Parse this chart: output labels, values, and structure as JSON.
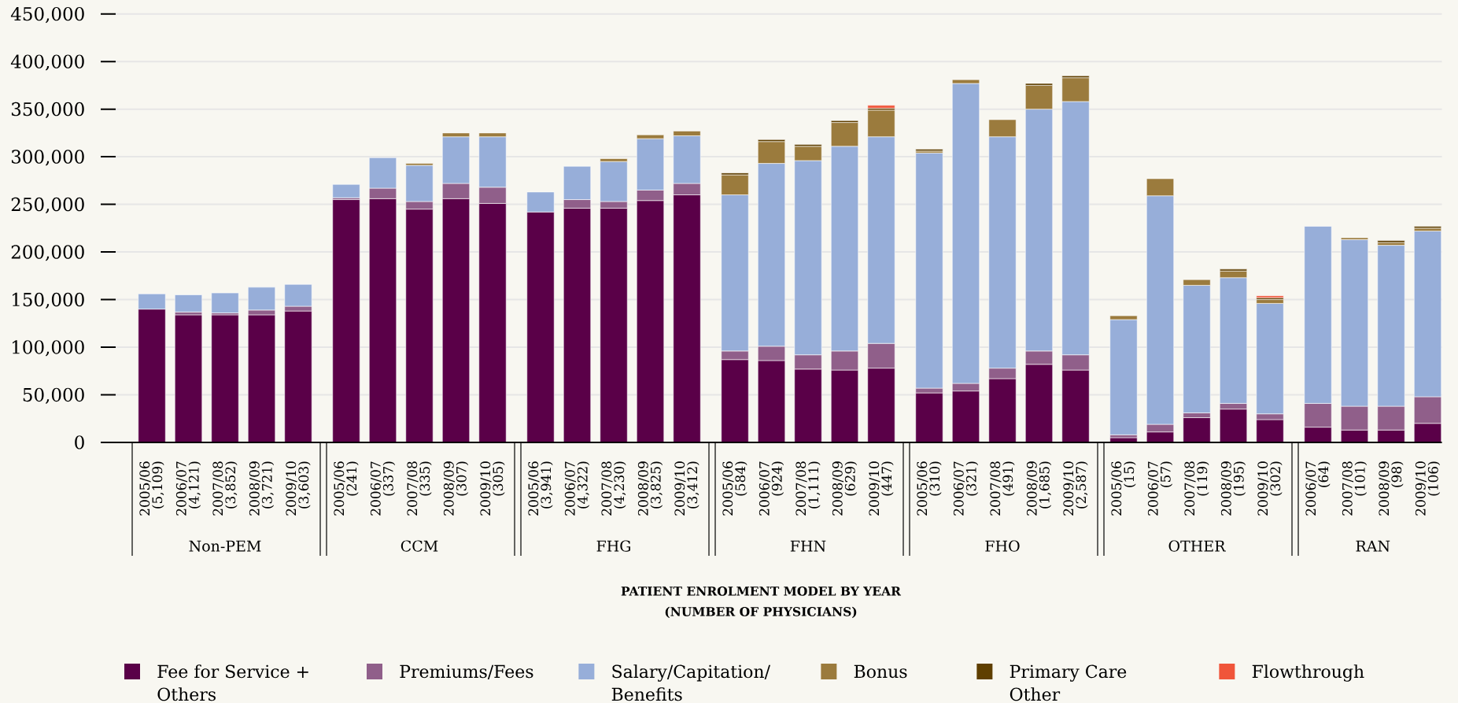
{
  "chart_data": [
    {
      "type": "bar",
      "stacked": true,
      "xlabel": "Non-PEM",
      "categories": [
        "2005/06 (5,109)",
        "2006/07 (4,121)",
        "2007/08 (3,852)",
        "2008/09 (3,721)",
        "2009/10 (3,603)"
      ],
      "series": [
        {
          "name": "Fee for Service + Others",
          "color": "#5a0048",
          "values": [
            140000,
            134000,
            134000,
            134000,
            138000
          ]
        },
        {
          "name": "Premiums/Fees",
          "color": "#905f8a",
          "values": [
            null,
            3000,
            2000,
            5000,
            5000
          ]
        },
        {
          "name": "Salary/Capitation/ Benefits",
          "color": "#97aed9",
          "values": [
            16000,
            18000,
            21000,
            24000,
            23000
          ]
        },
        {
          "name": "Bonus",
          "color": "#9b7b3d",
          "values": [
            null,
            null,
            null,
            null,
            null
          ]
        },
        {
          "name": "Primary Care Other",
          "color": "#5f3f00",
          "values": [
            null,
            null,
            null,
            null,
            null
          ]
        },
        {
          "name": "Flowthrough",
          "color": "#f0553a",
          "values": [
            null,
            null,
            null,
            null,
            null
          ]
        }
      ],
      "ylim": [
        0,
        450000
      ],
      "yticks": [
        0,
        {
          "value": 50000,
          "label": "50,000"
        },
        {
          "value": 100000,
          "label": "100,000"
        },
        {
          "value": 150000,
          "label": "150,000"
        },
        {
          "value": 200000,
          "label": "200,000"
        },
        {
          "value": 250000,
          "label": "250,000"
        },
        {
          "value": 300000,
          "label": "300,000"
        },
        {
          "value": 350000,
          "label": "350,000"
        },
        {
          "value": 400000,
          "label": "400,000"
        },
        {
          "value": 450000,
          "label": "450,000"
        }
      ],
      "grid": "y",
      "legend": "bottom"
    },
    {
      "type": "bar",
      "stacked": true,
      "xlabel": "CCM",
      "categories": [
        "2005/06 (241)",
        "2006/07 (337)",
        "2007/08 (335)",
        "2008/09 (307)",
        "2009/10 (305)"
      ],
      "series": [
        {
          "color": "#5a0048",
          "values": [
            255000,
            256000,
            245000,
            256000,
            251000
          ]
        },
        {
          "color": "#905f8a",
          "values": [
            2000,
            11000,
            8000,
            16000,
            17000
          ]
        },
        {
          "color": "#97aed9",
          "values": [
            14000,
            32000,
            38000,
            49000,
            53000
          ]
        },
        {
          "color": "#9b7b3d",
          "values": [
            null,
            null,
            2000,
            4000,
            4000
          ]
        }
      ],
      "ylim": [
        0,
        450000
      ],
      "yticks": [
        0,
        50000,
        100000,
        150000,
        200000,
        250000,
        300000,
        350000,
        400000,
        450000
      ],
      "grid": "y",
      "tick_labels": "x"
    },
    {
      "type": "bar",
      "stacked": true,
      "xlabel": "FHG",
      "categories": [
        "2005/06 (3,941)",
        "2006/07 (4,322)",
        "2007/08 (4,230)",
        "2008/09 (3,825)",
        "2009/10 (3,412)"
      ],
      "series": [
        {
          "color": "#5a0048",
          "values": [
            242000,
            246000,
            246000,
            254000,
            260000
          ]
        },
        {
          "color": "#905f8a",
          "values": [
            null,
            9000,
            7000,
            11000,
            12000
          ]
        },
        {
          "color": "#97aed9",
          "values": [
            21000,
            35000,
            42000,
            54000,
            50000
          ]
        },
        {
          "color": "#9b7b3d",
          "values": [
            null,
            null,
            3000,
            4000,
            5000
          ]
        }
      ],
      "ylim": [
        0,
        450000
      ],
      "yticks": [
        0,
        50000,
        100000,
        150000,
        200000,
        250000,
        300000,
        350000,
        400000,
        450000
      ],
      "grid": "y",
      "tick_labels": "x"
    },
    {
      "type": "bar",
      "stacked": true,
      "xlabel": "FHN",
      "categories": [
        "2005/06 (584)",
        "2006/07 (924)",
        "2007/08 (1,111)",
        "2008/09 (629)",
        "2009/10 (447)"
      ],
      "series": [
        {
          "color": "#5a0048",
          "values": [
            87000,
            86000,
            77000,
            76000,
            78000
          ]
        },
        {
          "color": "#905f8a",
          "values": [
            9000,
            15000,
            15000,
            20000,
            26000
          ]
        },
        {
          "color": "#97aed9",
          "values": [
            164000,
            192000,
            204000,
            215000,
            217000
          ]
        },
        {
          "color": "#9b7b3d",
          "values": [
            21000,
            23000,
            15000,
            25000,
            28000
          ]
        },
        {
          "color": "#5f3f00",
          "values": [
            2000,
            2000,
            2000,
            2000,
            2000
          ]
        },
        {
          "color": "#f0553a",
          "values": [
            null,
            null,
            null,
            null,
            3000
          ]
        }
      ],
      "ylim": [
        0,
        450000
      ],
      "yticks": [
        0,
        50000,
        100000,
        150000,
        200000,
        250000,
        300000,
        350000,
        400000,
        450000
      ],
      "grid": "y",
      "tick_labels": "x",
      "annotations": [
        "PATIENT ENROLMENT MODEL BY YEAR (NUMBER OF PHYSICIANS)"
      ]
    },
    {
      "type": "bar",
      "stacked": true,
      "xlabel": "FHO",
      "categories": [
        "2005/06 (310)",
        "2006/07 (321)",
        "2007/08 (491)",
        "2008/09 (1,685)",
        "2009/10 (2,587)"
      ],
      "series": [
        {
          "color": "#5a0048",
          "values": [
            52000,
            54000,
            67000,
            82000,
            76000
          ]
        },
        {
          "color": "#905f8a",
          "values": [
            5000,
            8000,
            11000,
            14000,
            16000
          ]
        },
        {
          "color": "#97aed9",
          "values": [
            247000,
            315000,
            243000,
            254000,
            266000
          ]
        },
        {
          "color": "#9b7b3d",
          "values": [
            2000,
            4000,
            18000,
            25000,
            25000
          ]
        },
        {
          "color": "#5f3f00",
          "values": [
            2000,
            null,
            null,
            2000,
            2000
          ]
        }
      ],
      "ylim": [
        0,
        450000
      ],
      "yticks": [
        0,
        50000,
        100000,
        150000,
        200000,
        250000,
        300000,
        350000,
        400000,
        450000
      ],
      "grid": "y",
      "tick_labels": "x"
    },
    {
      "type": "bar",
      "stacked": true,
      "xlabel": "OTHER",
      "categories": [
        "2005/06 (15)",
        "2006/07 (57)",
        "2007/08 (119)",
        "2008/09 (195)",
        "2009/10 (302)"
      ],
      "series": [
        {
          "color": "#5a0048",
          "values": [
            5000,
            11000,
            26000,
            35000,
            24000
          ]
        },
        {
          "color": "#905f8a",
          "values": [
            3000,
            8000,
            5000,
            6000,
            6000
          ]
        },
        {
          "color": "#97aed9",
          "values": [
            121000,
            240000,
            134000,
            132000,
            116000
          ]
        },
        {
          "color": "#9b7b3d",
          "values": [
            4000,
            18000,
            6000,
            7000,
            4000
          ]
        },
        {
          "color": "#5f3f00",
          "values": [
            null,
            null,
            null,
            2000,
            2000
          ]
        },
        {
          "color": "#f0553a",
          "values": [
            null,
            null,
            null,
            null,
            2000
          ]
        }
      ],
      "ylim": [
        0,
        450000
      ],
      "yticks": [
        0,
        50000,
        100000,
        150000,
        200000,
        250000,
        300000,
        350000,
        400000,
        450000
      ],
      "grid": "y",
      "tick_labels": "x"
    },
    {
      "type": "bar",
      "stacked": true,
      "xlabel": "RAN",
      "categories": [
        "2006/07 (64)",
        "2007/08 (101)",
        "2008/09 (98)",
        "2009/10 (106)"
      ],
      "series": [
        {
          "color": "#5a0048",
          "values": [
            16000,
            13000,
            13000,
            20000
          ]
        },
        {
          "color": "#905f8a",
          "values": [
            25000,
            25000,
            25000,
            28000
          ]
        },
        {
          "color": "#97aed9",
          "values": [
            186000,
            175000,
            169000,
            174000
          ]
        },
        {
          "color": "#9b7b3d",
          "values": [
            null,
            2000,
            3000,
            3000
          ]
        },
        {
          "color": "#5f3f00",
          "values": [
            null,
            null,
            2000,
            2000
          ]
        }
      ],
      "ylim": [
        0,
        450000
      ],
      "yticks": [
        0,
        50000,
        100000,
        150000,
        200000,
        250000,
        300000,
        350000,
        400000,
        450000
      ],
      "grid": "y",
      "tick_labels": "x"
    }
  ]
}
